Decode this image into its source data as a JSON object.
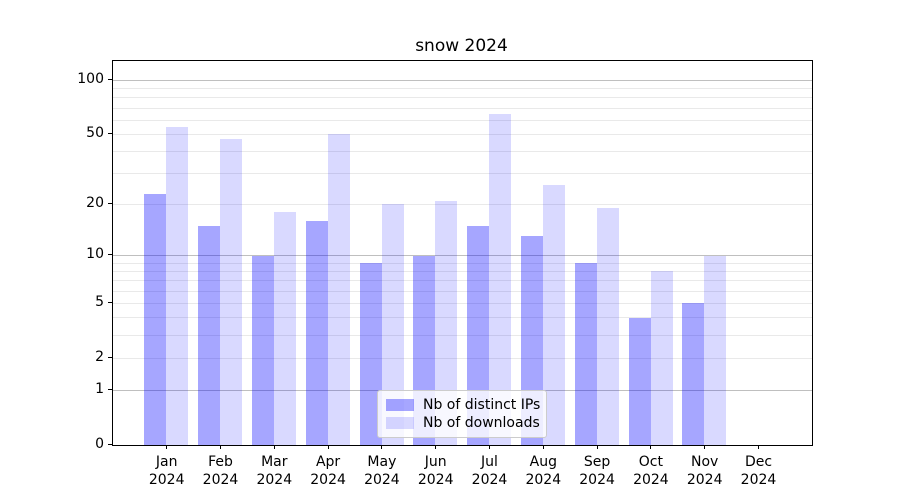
{
  "chart_data": {
    "type": "bar",
    "title": "snow 2024",
    "categories": [
      "Jan",
      "Feb",
      "Mar",
      "Apr",
      "May",
      "Jun",
      "Jul",
      "Aug",
      "Sep",
      "Oct",
      "Nov",
      "Dec"
    ],
    "x_tick_second_line": "2024",
    "series": [
      {
        "name": "Nb of distinct IPs",
        "color": "rgba(0,0,255,0.35)",
        "values": [
          23,
          15,
          10,
          16,
          9,
          10,
          15,
          13,
          9,
          4,
          5,
          0
        ]
      },
      {
        "name": "Nb of downloads",
        "color": "rgba(0,0,255,0.15)",
        "values": [
          55,
          47,
          18,
          50,
          20,
          21,
          65,
          26,
          19,
          8,
          10,
          0
        ]
      }
    ],
    "yscale": "log1p",
    "ylim": [
      0,
      128
    ],
    "y_ticks": [
      0,
      1,
      2,
      5,
      10,
      20,
      50,
      100
    ],
    "y_decade_gridlines": [
      1,
      10,
      100
    ],
    "y_minor_gridlines": [
      3,
      4,
      6,
      7,
      8,
      9,
      30,
      40,
      60,
      70,
      80,
      90
    ],
    "grid": true,
    "legend_position": "lower center",
    "colors": {
      "major_grid": "#bfbfbf",
      "minor_grid": "#e9e9e9",
      "axis": "#000000",
      "background": "#ffffff"
    }
  }
}
